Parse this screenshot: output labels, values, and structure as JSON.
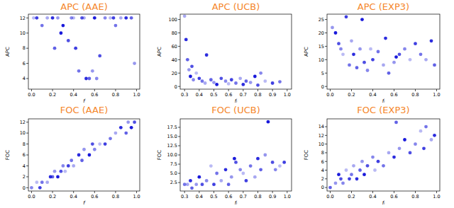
{
  "chart_data": [
    {
      "type": "scatter",
      "title": "APC (AAE)",
      "x_label": "f",
      "y_label": "APC",
      "color": "#1a1adb",
      "x": [
        0.02,
        0.05,
        0.1,
        0.15,
        0.2,
        0.22,
        0.25,
        0.3,
        0.35,
        0.38,
        0.4,
        0.42,
        0.45,
        0.5,
        0.52,
        0.55,
        0.58,
        0.6,
        0.65,
        0.7,
        0.75,
        0.78,
        0.8,
        0.85,
        0.9,
        0.95,
        0.98,
        0.28,
        0.48,
        0.62
      ],
      "values": [
        12,
        12,
        11,
        12,
        12,
        8,
        12,
        11,
        9,
        12,
        12,
        8,
        5,
        12,
        4,
        4,
        5,
        12,
        7,
        12,
        12,
        12,
        11,
        12,
        12,
        12,
        6,
        10,
        12,
        4
      ],
      "xlim": [
        -0.03,
        1.03
      ],
      "ylim": [
        2.6,
        12.5
      ],
      "xticks": [
        {
          "value": 0,
          "label": "0.0"
        },
        0.2,
        0.4,
        0.6,
        0.8,
        {
          "value": 1,
          "label": "1.0"
        }
      ],
      "yticks": [
        4,
        6,
        8,
        10,
        12
      ]
    },
    {
      "type": "scatter",
      "title": "APC (UCB)",
      "x_label": "fᵢ",
      "y_label": "APC",
      "color": "#1a1adb",
      "x": [
        0.3,
        0.31,
        0.32,
        0.33,
        0.34,
        0.35,
        0.36,
        0.38,
        0.4,
        0.42,
        0.44,
        0.45,
        0.48,
        0.5,
        0.52,
        0.55,
        0.58,
        0.6,
        0.62,
        0.65,
        0.68,
        0.7,
        0.72,
        0.75,
        0.78,
        0.8,
        0.82,
        0.85,
        0.9,
        0.95
      ],
      "values": [
        105,
        70,
        40,
        25,
        15,
        30,
        10,
        20,
        12,
        8,
        5,
        47,
        10,
        6,
        3,
        12,
        8,
        4,
        10,
        5,
        12,
        3,
        8,
        6,
        15,
        2,
        20,
        8,
        5,
        7
      ],
      "xlim": [
        0.27,
        1.03
      ],
      "ylim": [
        -4,
        108
      ],
      "xticks": [
        0.3,
        0.4,
        0.5,
        0.6,
        0.7,
        0.8,
        0.9,
        {
          "value": 1,
          "label": "1.0"
        }
      ],
      "yticks": [
        0,
        20,
        40,
        60,
        80,
        100
      ]
    },
    {
      "type": "scatter",
      "title": "APC (EXP3)",
      "x_label": "fᵢ",
      "y_label": "APC",
      "color": "#1a1adb",
      "x": [
        0.02,
        0.05,
        0.08,
        0.1,
        0.12,
        0.15,
        0.18,
        0.2,
        0.22,
        0.25,
        0.28,
        0.3,
        0.32,
        0.35,
        0.38,
        0.4,
        0.45,
        0.5,
        0.52,
        0.55,
        0.6,
        0.62,
        0.65,
        0.7,
        0.75,
        0.8,
        0.85,
        0.9,
        0.95,
        0.98
      ],
      "values": [
        22,
        20,
        16,
        14,
        12,
        26,
        8,
        17,
        12,
        7,
        14,
        25,
        9,
        6,
        14,
        10,
        13,
        8,
        18,
        5,
        9,
        11,
        12,
        14,
        10,
        16,
        12,
        10,
        17,
        8
      ],
      "xlim": [
        -0.03,
        1.03
      ],
      "ylim": [
        -1,
        27
      ],
      "xticks": [
        {
          "value": 0,
          "label": "0.0"
        },
        0.2,
        0.4,
        0.6,
        0.8,
        {
          "value": 1,
          "label": "1.0"
        }
      ],
      "yticks": [
        0,
        5,
        10,
        15,
        20,
        25
      ]
    },
    {
      "type": "scatter",
      "title": "FOC (AAE)",
      "x_label": "f",
      "y_label": "FOC",
      "color": "#1a1adb",
      "x": [
        0.0,
        0.05,
        0.08,
        0.1,
        0.15,
        0.18,
        0.2,
        0.22,
        0.25,
        0.28,
        0.3,
        0.32,
        0.35,
        0.38,
        0.4,
        0.45,
        0.48,
        0.5,
        0.55,
        0.58,
        0.6,
        0.65,
        0.7,
        0.75,
        0.8,
        0.85,
        0.9,
        0.92,
        0.95,
        0.98
      ],
      "values": [
        0,
        1,
        0,
        1,
        1,
        2,
        2,
        3,
        2,
        3,
        4,
        3,
        4,
        5,
        4,
        6,
        5,
        7,
        6,
        8,
        7,
        8,
        8,
        9,
        10,
        11,
        10,
        12,
        11,
        12
      ],
      "xlim": [
        -0.03,
        1.03
      ],
      "ylim": [
        -0.6,
        12.6
      ],
      "xticks": [
        {
          "value": 0,
          "label": "0.0"
        },
        0.2,
        0.4,
        0.6,
        0.8,
        {
          "value": 1,
          "label": "1.0"
        }
      ],
      "yticks": [
        0,
        2,
        4,
        6,
        8,
        10,
        12
      ]
    },
    {
      "type": "scatter",
      "title": "FOC (UCB)",
      "x_label": "fᵢ",
      "y_label": "FOC",
      "color": "#1a1adb",
      "x": [
        0.3,
        0.32,
        0.34,
        0.35,
        0.38,
        0.4,
        0.42,
        0.45,
        0.48,
        0.5,
        0.52,
        0.55,
        0.58,
        0.6,
        0.62,
        0.64,
        0.65,
        0.68,
        0.7,
        0.72,
        0.75,
        0.78,
        0.8,
        0.82,
        0.85,
        0.87,
        0.9,
        0.92,
        0.95,
        0.98
      ],
      "values": [
        2,
        2,
        3,
        1,
        2,
        4,
        2,
        3,
        7,
        2,
        5,
        3,
        6,
        2,
        4,
        9,
        8,
        6,
        5,
        3,
        7,
        4,
        9,
        6,
        10,
        19,
        8,
        6,
        7,
        8
      ],
      "xlim": [
        0.27,
        1.03
      ],
      "ylim": [
        0.2,
        19.8
      ],
      "xticks": [
        0.3,
        0.4,
        0.5,
        0.6,
        0.7,
        0.8,
        0.9,
        {
          "value": 1,
          "label": "1.0"
        }
      ],
      "yticks": [
        2.5,
        {
          "value": 5,
          "label": "5.0"
        },
        7.5,
        {
          "value": 10,
          "label": "10.0"
        },
        12.5,
        {
          "value": 15,
          "label": "15.0"
        },
        17.5
      ]
    },
    {
      "type": "scatter",
      "title": "FOC (EXP3)",
      "x_label": "fᵢ",
      "y_label": "FOC",
      "color": "#1a1adb",
      "x": [
        0.0,
        0.05,
        0.08,
        0.1,
        0.12,
        0.15,
        0.18,
        0.2,
        0.22,
        0.25,
        0.28,
        0.3,
        0.32,
        0.35,
        0.4,
        0.42,
        0.45,
        0.5,
        0.55,
        0.6,
        0.62,
        0.65,
        0.7,
        0.75,
        0.8,
        0.85,
        0.88,
        0.9,
        0.95,
        0.98
      ],
      "values": [
        0,
        1,
        3,
        2,
        1,
        4,
        2,
        3,
        5,
        2,
        4,
        6,
        3,
        5,
        7,
        4,
        6,
        5,
        8,
        7,
        15,
        9,
        11,
        8,
        10,
        13,
        9,
        14,
        11,
        12
      ],
      "xlim": [
        -0.03,
        1.03
      ],
      "ylim": [
        -0.8,
        15.8
      ],
      "xticks": [
        {
          "value": 0,
          "label": "0.0"
        },
        0.2,
        0.4,
        0.6,
        0.8,
        {
          "value": 1,
          "label": "1.0"
        }
      ],
      "yticks": [
        0,
        2,
        4,
        6,
        8,
        10,
        12,
        14
      ]
    }
  ]
}
